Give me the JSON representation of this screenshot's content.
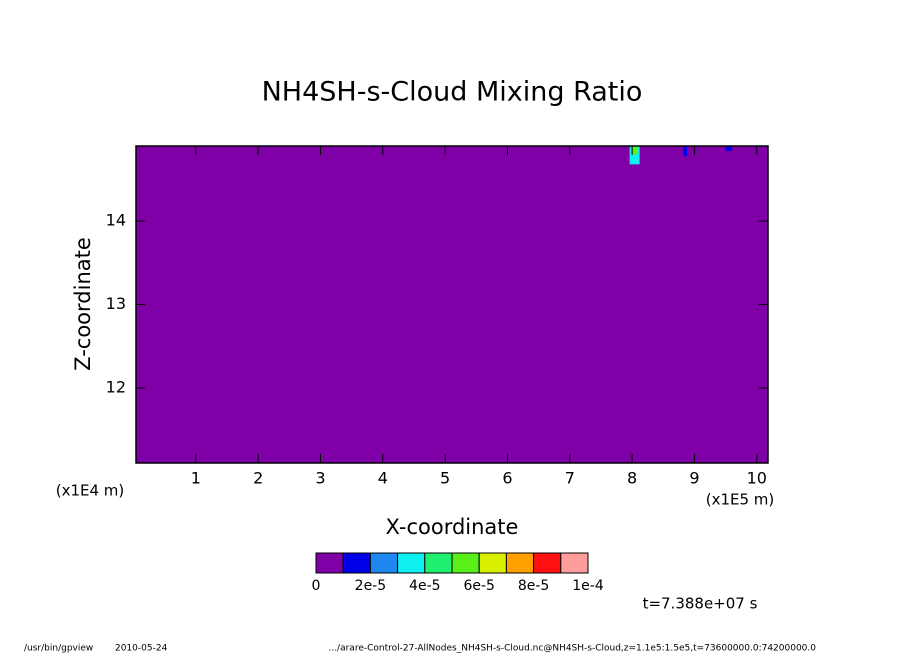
{
  "chart_data": {
    "type": "contour",
    "title": "NH4SH-s-Cloud Mixing Ratio",
    "x_label": "X-coordinate",
    "y_label": "Z-coordinate",
    "x_unit": "(x1E5 m)",
    "y_unit": "(x1E4 m)",
    "xlim": [
      0.04,
      10.18
    ],
    "ylim": [
      11.1,
      14.9
    ],
    "xticks": [
      1,
      2,
      3,
      4,
      5,
      6,
      7,
      8,
      9,
      10
    ],
    "yticks": [
      12,
      13,
      14
    ],
    "field_value": 0,
    "patches": [
      {
        "x": [
          7.96,
          8.12
        ],
        "z": [
          14.68,
          14.9
        ],
        "value": 3e-05
      },
      {
        "x": [
          7.99,
          8.08
        ],
        "z": [
          14.8,
          14.9
        ],
        "value": 5e-05
      },
      {
        "x": [
          8.82,
          8.88
        ],
        "z": [
          14.78,
          14.9
        ],
        "value": 1e-05
      },
      {
        "x": [
          9.5,
          9.6
        ],
        "z": [
          14.84,
          14.9
        ],
        "value": 1e-05
      }
    ],
    "levels": [
      0,
      1e-05,
      2e-05,
      3e-05,
      4e-05,
      5e-05,
      6e-05,
      7e-05,
      8e-05,
      9e-05,
      0.0001
    ],
    "colors": [
      "#8000a8",
      "#0000e8",
      "#1e88f0",
      "#10f0f0",
      "#20f070",
      "#58f018",
      "#d8f000",
      "#ffa000",
      "#ff1010",
      "#ff9c9c"
    ],
    "colorbar_ticks": [
      0,
      {
        "value": 2e-05,
        "label": "2e-5"
      },
      {
        "value": 4e-05,
        "label": "4e-5"
      },
      {
        "value": 6e-05,
        "label": "6e-5"
      },
      {
        "value": 8e-05,
        "label": "8e-5"
      },
      {
        "value": 0.0001,
        "label": "1e-4"
      }
    ],
    "time_label": "t=7.388e+07 s",
    "footer_program": "/usr/bin/gpview",
    "footer_date": "2010-05-24",
    "footer_source": ".../arare-Control-27-AllNodes_NH4SH-s-Cloud.nc@NH4SH-s-Cloud,z=1.1e5:1.5e5,t=73600000.0:74200000.0"
  }
}
